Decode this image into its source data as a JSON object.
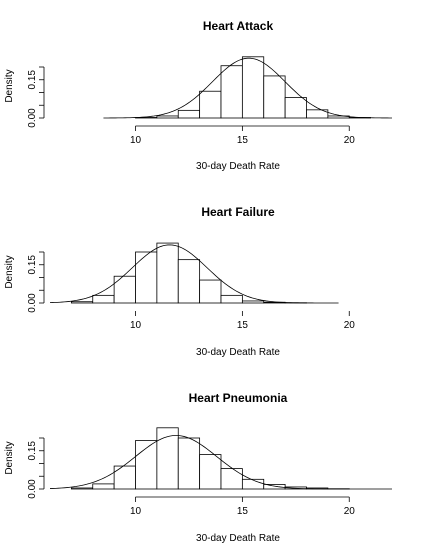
{
  "chart_data": [
    {
      "type": "bar",
      "title": "Heart Attack",
      "xlabel": "30-day Death Rate",
      "ylabel": "Density",
      "xlim": [
        6,
        22
      ],
      "ylim": [
        0,
        0.25
      ],
      "xticks": [
        10,
        15,
        20
      ],
      "yticks": [
        0.0,
        0.15
      ],
      "yticks_extra": [
        0.05,
        0.1,
        0.2
      ],
      "show_x_axis": true,
      "bin_edges": [
        9,
        10,
        11,
        12,
        13,
        14,
        15,
        16,
        17,
        18,
        19,
        20,
        21,
        22
      ],
      "densities": [
        0.0,
        0.002,
        0.008,
        0.03,
        0.105,
        0.205,
        0.24,
        0.165,
        0.08,
        0.032,
        0.008,
        0.002,
        0.0
      ],
      "density_curve": {
        "range": [
          8.5,
          22
        ],
        "mean": 15.3,
        "sd": 1.7
      }
    },
    {
      "type": "bar",
      "title": "Heart Failure",
      "xlabel": "30-day Death Rate",
      "ylabel": "Density",
      "xlim": [
        6,
        22
      ],
      "ylim": [
        0,
        0.25
      ],
      "xticks": [
        10,
        15,
        20
      ],
      "yticks": [
        0.0,
        0.15
      ],
      "yticks_extra": [
        0.05,
        0.1,
        0.2
      ],
      "show_x_axis": false,
      "bin_edges": [
        6,
        7,
        8,
        9,
        10,
        11,
        12,
        13,
        14,
        15,
        16,
        17,
        18,
        19
      ],
      "densities": [
        0.0,
        0.005,
        0.03,
        0.105,
        0.2,
        0.235,
        0.17,
        0.09,
        0.03,
        0.008,
        0.003,
        0.001,
        0.0
      ],
      "density_curve": {
        "range": [
          6,
          19.5
        ],
        "mean": 11.6,
        "sd": 1.75
      }
    },
    {
      "type": "bar",
      "title": "Heart Pneumonia",
      "xlabel": "30-day Death Rate",
      "ylabel": "Density",
      "xlim": [
        6,
        22
      ],
      "ylim": [
        0,
        0.25
      ],
      "xticks": [
        10,
        15,
        20
      ],
      "yticks": [
        0.0,
        0.15
      ],
      "yticks_extra": [
        0.05,
        0.1,
        0.2
      ],
      "show_x_axis": true,
      "bin_edges": [
        6,
        7,
        8,
        9,
        10,
        11,
        12,
        13,
        14,
        15,
        16,
        17,
        18,
        19,
        20,
        21,
        22
      ],
      "densities": [
        0.0,
        0.004,
        0.02,
        0.09,
        0.19,
        0.24,
        0.2,
        0.135,
        0.08,
        0.038,
        0.018,
        0.008,
        0.004,
        0.001,
        0.0,
        0.0
      ],
      "density_curve": {
        "range": [
          6,
          22
        ],
        "mean": 11.9,
        "sd": 1.9
      }
    }
  ]
}
